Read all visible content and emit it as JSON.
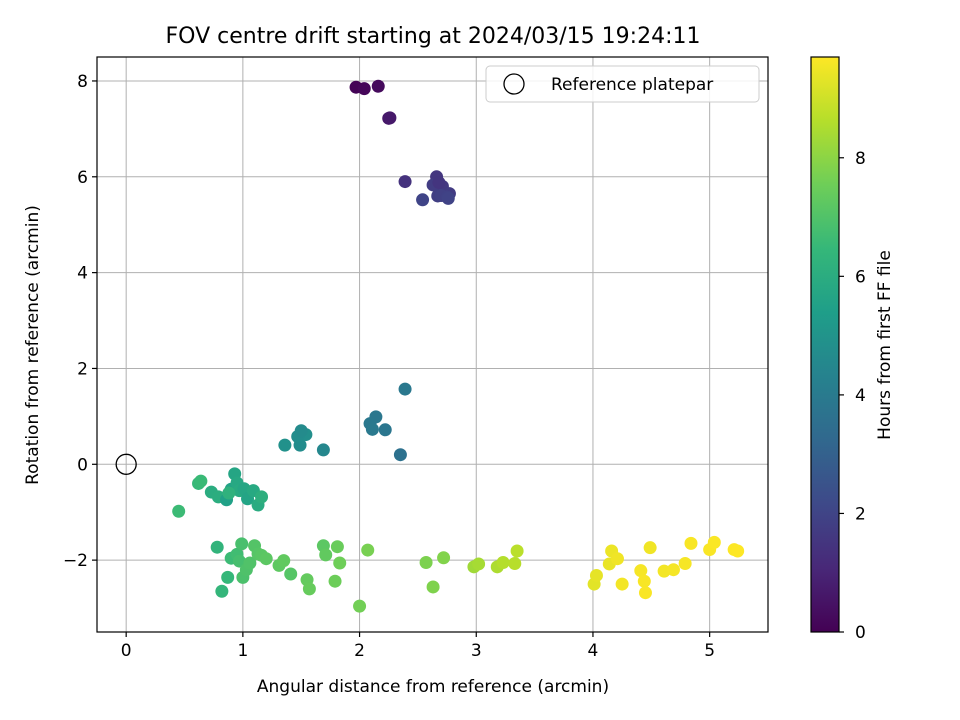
{
  "chart_data": {
    "type": "scatter",
    "title": "FOV centre drift starting at 2024/03/15 19:24:11",
    "xlabel": "Angular distance from reference (arcmin)",
    "ylabel": "Rotation from reference (arcmin)",
    "xlim": [
      -0.25,
      5.5
    ],
    "ylim": [
      -3.5,
      8.5
    ],
    "xticks": [
      0,
      1,
      2,
      3,
      4,
      5
    ],
    "yticks": [
      -2,
      0,
      2,
      4,
      6,
      8
    ],
    "ytick_labels": [
      "−2",
      "0",
      "2",
      "4",
      "6",
      "8"
    ],
    "grid": true,
    "legend": {
      "placement": "top-right",
      "entries": [
        "Reference platepar"
      ]
    },
    "reference_point": {
      "name": "Reference platepar",
      "x": 0,
      "y": 0,
      "marker": "open-circle"
    },
    "colorbar": {
      "label": "Hours from first FF file",
      "range": [
        0,
        9.7
      ],
      "ticks": [
        0,
        2,
        4,
        6,
        8
      ],
      "colormap": "viridis",
      "colors": [
        "#440154",
        "#482878",
        "#3e4989",
        "#31688e",
        "#26828e",
        "#1f9e89",
        "#35b779",
        "#6ece58",
        "#b5de2b",
        "#fde725"
      ]
    },
    "series": [
      {
        "x": [
          1.97,
          2.04,
          2.16,
          2.25,
          2.26,
          2.39,
          2.66,
          2.71,
          2.77,
          2.63,
          2.67,
          2.7,
          2.75,
          2.76,
          2.54,
          2.68,
          2.39,
          2.35,
          2.22,
          2.14,
          2.09,
          2.11,
          1.69,
          1.49,
          1.54,
          1.36,
          1.47,
          1.5,
          0.45,
          0.62,
          0.64,
          0.73,
          0.79,
          0.86,
          0.9,
          0.93,
          0.95,
          0.97,
          1.01,
          1.04,
          1.09,
          1.13,
          1.16,
          0.88,
          0.78,
          0.82,
          0.87,
          0.9,
          0.95,
          0.97,
          0.99,
          1.0,
          1.03,
          1.06,
          1.1,
          1.13,
          1.16,
          1.2,
          1.31,
          1.35,
          1.41,
          1.55,
          1.57,
          1.69,
          1.71,
          1.79,
          1.81,
          1.83,
          2.0,
          2.07,
          2.57,
          2.63,
          2.72,
          2.98,
          3.02,
          3.18,
          3.23,
          3.33,
          3.35,
          4.01,
          4.03,
          4.14,
          4.16,
          4.21,
          4.25,
          4.41,
          4.44,
          4.45,
          4.49,
          4.61,
          4.69,
          4.79,
          4.84,
          5.0,
          5.04,
          5.21,
          5.24
        ],
        "y": [
          7.87,
          7.84,
          7.89,
          7.22,
          7.23,
          5.9,
          6.0,
          5.8,
          5.65,
          5.83,
          5.6,
          5.61,
          5.58,
          5.55,
          5.52,
          5.88,
          1.57,
          0.2,
          0.72,
          0.99,
          0.85,
          0.73,
          0.3,
          0.4,
          0.62,
          0.4,
          0.58,
          0.7,
          -0.98,
          -0.4,
          -0.35,
          -0.58,
          -0.68,
          -0.74,
          -0.52,
          -0.2,
          -0.39,
          -0.55,
          -0.51,
          -0.72,
          -0.55,
          -0.85,
          -0.68,
          -0.6,
          -1.73,
          -2.65,
          -2.36,
          -1.96,
          -1.88,
          -2.02,
          -1.66,
          -2.36,
          -2.2,
          -2.06,
          -1.7,
          -1.87,
          -1.9,
          -1.97,
          -2.11,
          -2.01,
          -2.29,
          -2.41,
          -2.6,
          -1.7,
          -1.89,
          -2.44,
          -1.72,
          -2.06,
          -2.96,
          -1.79,
          -2.05,
          -2.56,
          -1.95,
          -2.14,
          -2.08,
          -2.14,
          -2.05,
          -2.07,
          -1.81,
          -2.5,
          -2.32,
          -2.08,
          -1.81,
          -1.97,
          -2.5,
          -2.22,
          -2.44,
          -2.68,
          -1.74,
          -2.23,
          -2.2,
          -2.07,
          -1.65,
          -1.78,
          -1.63,
          -1.78,
          -1.81
        ],
        "c": [
          0.05,
          0.15,
          0.25,
          0.6,
          0.65,
          1.4,
          1.55,
          1.6,
          1.7,
          1.75,
          1.8,
          1.85,
          1.9,
          1.95,
          2.0,
          1.5,
          3.9,
          3.6,
          3.8,
          3.85,
          3.9,
          3.95,
          4.5,
          4.7,
          4.8,
          4.9,
          4.75,
          4.65,
          6.6,
          6.5,
          6.55,
          6.0,
          6.05,
          5.5,
          5.6,
          5.7,
          5.8,
          5.9,
          5.75,
          5.65,
          5.85,
          5.95,
          6.1,
          6.2,
          6.3,
          6.4,
          6.45,
          6.6,
          6.7,
          6.8,
          6.85,
          6.9,
          6.95,
          7.0,
          7.05,
          7.1,
          7.15,
          7.2,
          7.25,
          7.3,
          7.1,
          7.35,
          7.4,
          7.2,
          7.3,
          7.5,
          7.45,
          7.55,
          7.6,
          7.7,
          7.75,
          7.8,
          7.85,
          8.3,
          8.4,
          8.5,
          8.6,
          8.65,
          8.7,
          9.3,
          9.35,
          9.4,
          9.45,
          9.5,
          9.55,
          9.6,
          9.62,
          9.64,
          9.5,
          9.55,
          9.58,
          9.6,
          9.62,
          9.64,
          9.66,
          9.68,
          9.7
        ]
      }
    ]
  }
}
